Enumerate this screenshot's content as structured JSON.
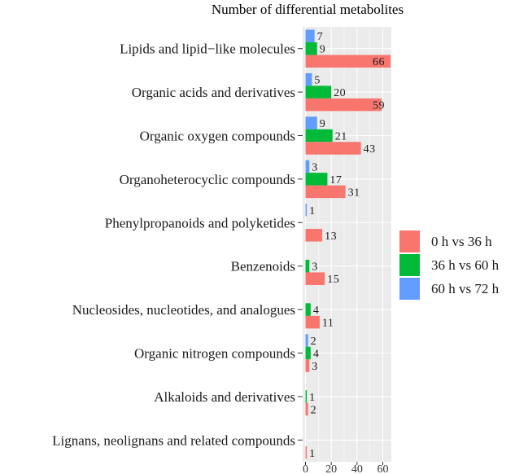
{
  "chart_data": {
    "type": "bar",
    "orientation": "horizontal",
    "title": "Number of differential metabolites",
    "xlabel": "",
    "ylabel": "",
    "xlim": [
      0,
      66
    ],
    "x_ticks": [
      0,
      20,
      40,
      60
    ],
    "grid": true,
    "legend_position": "right",
    "categories": [
      "Lipids and lipid−like molecules",
      "Organic acids and derivatives",
      "Organic oxygen compounds",
      "Organoheterocyclic compounds",
      "Phenylpropanoids and polyketides",
      "Benzenoids",
      "Nucleosides, nucleotides, and analogues",
      "Organic nitrogen compounds",
      "Alkaloids and derivatives",
      "Lignans, neolignans and related compounds"
    ],
    "series": [
      {
        "name": "60 h vs 72 h",
        "color": "#619CFF",
        "values": [
          7,
          5,
          9,
          3,
          1,
          null,
          null,
          2,
          null,
          null
        ]
      },
      {
        "name": "36 h vs 60 h",
        "color": "#00BA38",
        "values": [
          9,
          20,
          21,
          17,
          null,
          3,
          4,
          4,
          1,
          null
        ]
      },
      {
        "name": "0 h vs 36 h",
        "color": "#F8766D",
        "values": [
          66,
          59,
          43,
          31,
          13,
          15,
          11,
          3,
          2,
          1
        ]
      }
    ],
    "legend_order": [
      "0 h vs 36 h",
      "36 h vs 60 h",
      "60 h vs 72 h"
    ]
  },
  "colors": {
    "panel_bg": "#EBEBEB",
    "grid_major": "#FFFFFF",
    "text": "#1a1a1a"
  }
}
